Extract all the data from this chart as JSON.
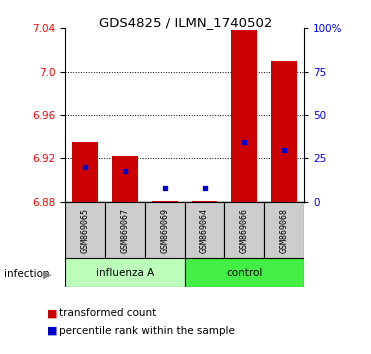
{
  "title": "GDS4825 / ILMN_1740502",
  "samples": [
    "GSM869065",
    "GSM869067",
    "GSM869069",
    "GSM869064",
    "GSM869066",
    "GSM869068"
  ],
  "bar_color": "#cc0000",
  "dot_color": "#0000cc",
  "red_values": [
    6.935,
    6.922,
    6.881,
    6.881,
    7.038,
    7.01
  ],
  "blue_values_y": [
    6.912,
    6.908,
    6.893,
    6.893,
    6.935,
    6.928
  ],
  "y_min": 6.88,
  "y_max": 7.04,
  "y_ticks_left": [
    6.88,
    6.92,
    6.96,
    7.0,
    7.04
  ],
  "y_ticks_right": [
    0,
    25,
    50,
    75,
    100
  ],
  "bar_bottom": 6.88,
  "bar_width": 0.65,
  "influenza_color": "#bbffbb",
  "control_color": "#44ee44",
  "sample_bg_color": "#cccccc",
  "legend_red_label": "transformed count",
  "legend_blue_label": "percentile rank within the sample",
  "infection_label": "infection",
  "group1_label": "influenza A",
  "group2_label": "control"
}
